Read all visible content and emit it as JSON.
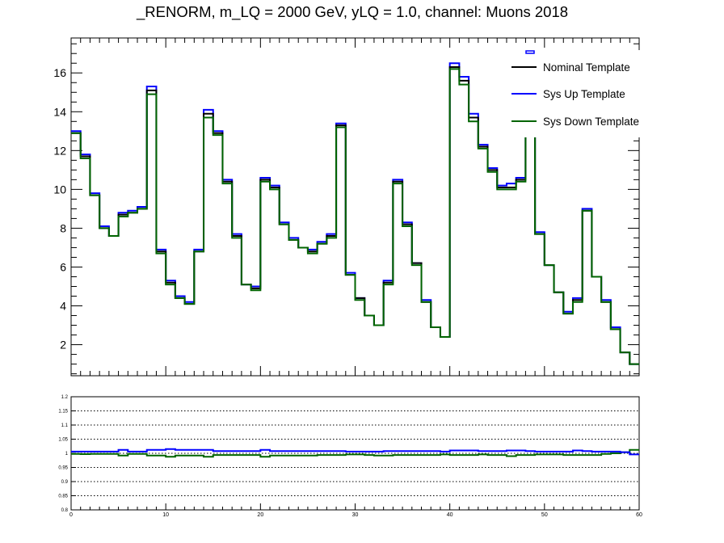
{
  "title": "_RENORM, m_LQ = 2000 GeV, yLQ = 1.0, channel: Muons 2018",
  "colors": {
    "nominal": "#000000",
    "up": "#0000ff",
    "down": "#006400",
    "grid": "#000000"
  },
  "chart_data": [
    {
      "type": "line",
      "style": "step-histogram",
      "x_edges": [
        0,
        1,
        2,
        3,
        4,
        5,
        6,
        7,
        8,
        9,
        10,
        11,
        12,
        13,
        14,
        15,
        16,
        17,
        18,
        19,
        20,
        21,
        22,
        23,
        24,
        25,
        26,
        27,
        28,
        29,
        30,
        31,
        32,
        33,
        34,
        35,
        36,
        37,
        38,
        39,
        40,
        41,
        42,
        43,
        44,
        45,
        46,
        47,
        48,
        49,
        50,
        51,
        52,
        53,
        54,
        55,
        56,
        57,
        58,
        59,
        60
      ],
      "xlim": [
        0,
        60
      ],
      "ylim": [
        0.4,
        17.8
      ],
      "y_ticks": [
        2,
        4,
        6,
        8,
        10,
        12,
        14,
        16
      ],
      "legend_position": "top-right",
      "legend_header": "",
      "series": [
        {
          "name": "Nominal Template",
          "key": "nominal",
          "values": [
            12.9,
            11.7,
            9.7,
            8.0,
            7.6,
            8.7,
            8.8,
            9.0,
            15.1,
            6.8,
            5.2,
            4.4,
            4.1,
            6.8,
            13.9,
            12.9,
            10.4,
            7.6,
            5.1,
            4.9,
            10.5,
            10.1,
            8.2,
            7.4,
            7.0,
            6.8,
            7.2,
            7.6,
            13.3,
            5.6,
            4.4,
            3.5,
            3.0,
            5.2,
            10.4,
            8.2,
            6.2,
            4.2,
            2.9,
            2.4,
            16.3,
            15.6,
            13.7,
            12.2,
            11.0,
            10.1,
            10.1,
            10.5,
            13.9,
            7.7,
            6.1,
            4.7,
            3.6,
            4.3,
            8.9,
            5.5,
            4.2,
            2.8,
            1.6,
            1.0
          ]
        },
        {
          "name": "Sys Up Template",
          "key": "up",
          "values": [
            13.0,
            11.8,
            9.8,
            8.1,
            7.6,
            8.8,
            8.9,
            9.1,
            15.3,
            6.9,
            5.3,
            4.5,
            4.2,
            6.9,
            14.1,
            13.0,
            10.5,
            7.7,
            5.1,
            5.0,
            10.6,
            10.2,
            8.3,
            7.5,
            7.0,
            6.9,
            7.3,
            7.7,
            13.4,
            5.7,
            4.4,
            3.5,
            3.0,
            5.3,
            10.5,
            8.3,
            6.2,
            4.3,
            2.9,
            2.4,
            16.5,
            15.8,
            13.9,
            12.3,
            11.1,
            10.2,
            10.3,
            10.6,
            14.0,
            7.8,
            6.1,
            4.7,
            3.7,
            4.4,
            9.0,
            5.5,
            4.3,
            2.9,
            1.6,
            1.0
          ]
        },
        {
          "name": "Sys Down Template",
          "key": "down",
          "values": [
            12.9,
            11.6,
            9.7,
            8.0,
            7.6,
            8.6,
            8.8,
            9.0,
            14.9,
            6.7,
            5.1,
            4.4,
            4.1,
            6.8,
            13.7,
            12.8,
            10.3,
            7.5,
            5.1,
            4.8,
            10.4,
            10.0,
            8.2,
            7.4,
            7.0,
            6.7,
            7.2,
            7.5,
            13.2,
            5.6,
            4.3,
            3.5,
            3.0,
            5.1,
            10.3,
            8.1,
            6.1,
            4.2,
            2.9,
            2.4,
            16.2,
            15.4,
            13.5,
            12.1,
            10.9,
            10.0,
            10.0,
            10.4,
            13.8,
            7.7,
            6.1,
            4.7,
            3.6,
            4.2,
            8.9,
            5.5,
            4.2,
            2.8,
            1.6,
            1.0
          ]
        }
      ]
    },
    {
      "type": "line",
      "style": "step-histogram",
      "panel": "ratio",
      "xlim": [
        0,
        60
      ],
      "ylim": [
        0.8,
        1.2
      ],
      "x_ticks": [
        0,
        10,
        20,
        30,
        40,
        50,
        60
      ],
      "y_ticks": [
        0.8,
        0.85,
        0.9,
        0.95,
        1,
        1.05,
        1.1,
        1.15,
        1.2
      ],
      "grid_y": true,
      "series": [
        {
          "key": "up",
          "values": [
            1.006,
            1.006,
            1.006,
            1.006,
            1.006,
            1.012,
            1.006,
            1.006,
            1.012,
            1.012,
            1.015,
            1.012,
            1.012,
            1.012,
            1.012,
            1.008,
            1.008,
            1.008,
            1.008,
            1.008,
            1.012,
            1.008,
            1.008,
            1.008,
            1.008,
            1.008,
            1.008,
            1.008,
            1.008,
            1.006,
            1.006,
            1.006,
            1.006,
            1.008,
            1.008,
            1.008,
            1.008,
            1.008,
            1.008,
            1.006,
            1.01,
            1.01,
            1.01,
            1.008,
            1.008,
            1.008,
            1.01,
            1.01,
            1.008,
            1.006,
            1.006,
            1.006,
            1.006,
            1.01,
            1.008,
            1.006,
            1.006,
            1.006,
            1.004,
            0.996
          ]
        },
        {
          "key": "down",
          "values": [
            0.998,
            0.997,
            0.998,
            0.998,
            0.998,
            0.992,
            0.998,
            0.998,
            0.992,
            0.992,
            0.988,
            0.992,
            0.992,
            0.992,
            0.988,
            0.994,
            0.994,
            0.994,
            0.994,
            0.994,
            0.988,
            0.992,
            0.992,
            0.992,
            0.992,
            0.992,
            0.994,
            0.994,
            0.994,
            0.996,
            0.996,
            0.994,
            0.992,
            0.992,
            0.994,
            0.994,
            0.994,
            0.994,
            0.994,
            0.996,
            0.994,
            0.994,
            0.994,
            0.996,
            0.994,
            0.994,
            0.99,
            0.994,
            0.994,
            0.996,
            0.996,
            0.996,
            0.994,
            0.994,
            0.994,
            0.994,
            0.998,
            1.0,
            1.004,
            1.012
          ]
        }
      ]
    }
  ]
}
